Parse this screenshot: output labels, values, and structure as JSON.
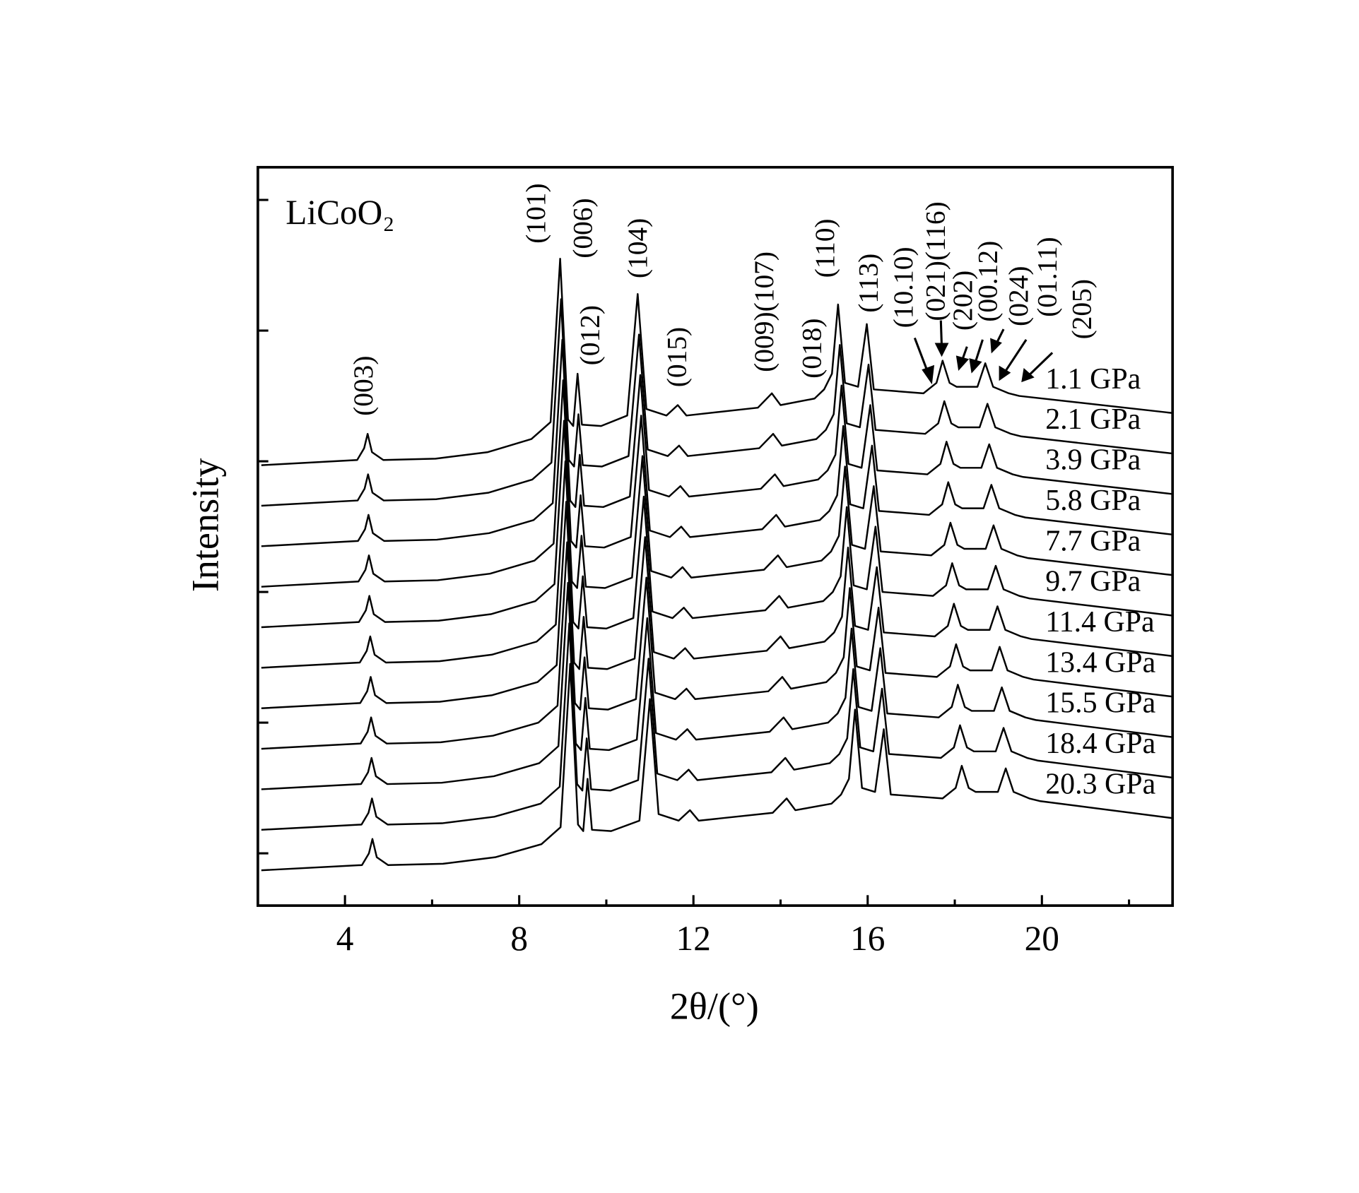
{
  "chart_data": {
    "type": "line",
    "sample_label": "LiCoO₂",
    "x_label": "2θ/(°)",
    "y_label": "Intensity",
    "annotations": [
      "(003)",
      "(101)",
      "(006)",
      "(012)",
      "(104)",
      "(015)",
      "(009)(107)",
      "(018)",
      "(110)",
      "(113)",
      "(10.10)",
      "(021)(116)",
      "(202)",
      "(00.12)",
      "(024)",
      "(01.11)",
      "(205)"
    ],
    "xlim": [
      2,
      23
    ],
    "xticks": [
      4,
      8,
      12,
      16,
      20
    ],
    "xminorticks": [
      6,
      10,
      14,
      18,
      22
    ],
    "ylim": [
      -0.4,
      5.25
    ],
    "yticks": [
      0,
      1,
      2,
      3,
      4,
      5
    ],
    "series": [
      {
        "name": "1.1 GPa",
        "color": "#000000",
        "x": [
          2.08,
          4.28,
          4.44,
          4.52,
          4.62,
          4.88,
          6.08,
          7.28,
          8.28,
          8.72,
          8.94,
          9.12,
          9.24,
          9.34,
          9.44,
          9.88,
          10.48,
          10.72,
          10.92,
          11.38,
          11.64,
          11.84,
          13.48,
          13.8,
          14.0,
          14.78,
          15.0,
          15.18,
          15.32,
          15.48,
          15.78,
          15.98,
          16.14,
          17.28,
          17.58,
          17.72,
          17.88,
          18.04,
          18.52,
          18.7,
          18.88,
          19.24,
          19.48,
          22.98
        ],
        "values": [
          2.97,
          3.01,
          3.1,
          3.21,
          3.07,
          3.01,
          3.02,
          3.07,
          3.17,
          3.3,
          4.55,
          3.32,
          3.27,
          3.67,
          3.28,
          3.27,
          3.35,
          4.28,
          3.4,
          3.35,
          3.43,
          3.35,
          3.41,
          3.52,
          3.43,
          3.48,
          3.55,
          3.67,
          4.2,
          3.6,
          3.57,
          4.05,
          3.55,
          3.52,
          3.6,
          3.77,
          3.6,
          3.57,
          3.57,
          3.75,
          3.57,
          3.52,
          3.5,
          3.37
        ]
      },
      {
        "name": "2.1 GPa",
        "color": "#000000",
        "x": [
          2.08,
          4.29,
          4.45,
          4.53,
          4.63,
          4.89,
          6.1,
          7.3,
          8.3,
          8.74,
          8.96,
          9.14,
          9.26,
          9.36,
          9.46,
          9.9,
          10.51,
          10.75,
          10.95,
          11.41,
          11.67,
          11.87,
          13.51,
          13.83,
          14.03,
          14.82,
          15.04,
          15.22,
          15.36,
          15.52,
          15.82,
          16.02,
          16.18,
          17.32,
          17.62,
          17.76,
          17.92,
          18.08,
          18.57,
          18.75,
          18.93,
          19.29,
          19.53,
          22.98
        ],
        "values": [
          2.66,
          2.7,
          2.79,
          2.9,
          2.76,
          2.7,
          2.71,
          2.76,
          2.86,
          2.99,
          4.24,
          3.01,
          2.96,
          3.36,
          2.97,
          2.96,
          3.04,
          3.97,
          3.09,
          3.04,
          3.12,
          3.04,
          3.1,
          3.21,
          3.12,
          3.17,
          3.24,
          3.36,
          3.89,
          3.29,
          3.26,
          3.74,
          3.24,
          3.21,
          3.29,
          3.46,
          3.29,
          3.26,
          3.26,
          3.44,
          3.26,
          3.21,
          3.19,
          3.06
        ]
      },
      {
        "name": "3.9 GPa",
        "color": "#000000",
        "x": [
          2.08,
          4.3,
          4.46,
          4.54,
          4.64,
          4.9,
          6.11,
          7.31,
          8.33,
          8.77,
          8.99,
          9.17,
          9.29,
          9.39,
          9.49,
          9.93,
          10.54,
          10.78,
          10.98,
          11.44,
          11.7,
          11.9,
          13.55,
          13.87,
          14.07,
          14.86,
          15.08,
          15.26,
          15.4,
          15.56,
          15.86,
          16.06,
          16.22,
          17.37,
          17.67,
          17.81,
          17.97,
          18.13,
          18.61,
          18.79,
          18.97,
          19.33,
          19.57,
          22.98
        ],
        "values": [
          2.35,
          2.39,
          2.48,
          2.59,
          2.45,
          2.39,
          2.4,
          2.45,
          2.55,
          2.68,
          3.93,
          2.7,
          2.65,
          3.05,
          2.66,
          2.65,
          2.73,
          3.66,
          2.78,
          2.73,
          2.81,
          2.73,
          2.79,
          2.9,
          2.81,
          2.86,
          2.93,
          3.05,
          3.58,
          2.98,
          2.95,
          3.43,
          2.93,
          2.9,
          2.98,
          3.15,
          2.98,
          2.95,
          2.95,
          3.13,
          2.95,
          2.9,
          2.88,
          2.75
        ]
      },
      {
        "name": "5.8 GPa",
        "color": "#000000",
        "x": [
          2.08,
          4.31,
          4.47,
          4.55,
          4.65,
          4.91,
          6.13,
          7.33,
          8.35,
          8.79,
          9.01,
          9.19,
          9.31,
          9.41,
          9.51,
          9.95,
          10.56,
          10.8,
          11.0,
          11.46,
          11.72,
          11.92,
          13.58,
          13.9,
          14.1,
          14.9,
          15.12,
          15.3,
          15.44,
          15.6,
          15.9,
          16.1,
          16.26,
          17.41,
          17.71,
          17.85,
          18.01,
          18.17,
          18.66,
          18.84,
          19.02,
          19.38,
          19.62,
          22.98
        ],
        "values": [
          2.04,
          2.08,
          2.17,
          2.28,
          2.14,
          2.08,
          2.09,
          2.14,
          2.24,
          2.37,
          3.62,
          2.39,
          2.34,
          2.74,
          2.35,
          2.34,
          2.42,
          3.35,
          2.47,
          2.42,
          2.5,
          2.42,
          2.48,
          2.59,
          2.5,
          2.55,
          2.62,
          2.74,
          3.27,
          2.67,
          2.64,
          3.12,
          2.62,
          2.59,
          2.67,
          2.84,
          2.67,
          2.64,
          2.64,
          2.82,
          2.64,
          2.59,
          2.57,
          2.44
        ]
      },
      {
        "name": "7.7 GPa",
        "color": "#000000",
        "x": [
          2.08,
          4.32,
          4.48,
          4.56,
          4.66,
          4.92,
          6.15,
          7.35,
          8.37,
          8.81,
          9.03,
          9.21,
          9.33,
          9.43,
          9.53,
          9.97,
          10.59,
          10.83,
          11.03,
          11.49,
          11.75,
          11.95,
          13.62,
          13.94,
          14.14,
          14.94,
          15.16,
          15.34,
          15.48,
          15.64,
          15.94,
          16.14,
          16.3,
          17.46,
          17.76,
          17.9,
          18.06,
          18.22,
          18.71,
          18.89,
          19.07,
          19.43,
          19.67,
          22.98
        ],
        "values": [
          1.73,
          1.77,
          1.86,
          1.97,
          1.83,
          1.77,
          1.78,
          1.83,
          1.93,
          2.06,
          3.31,
          2.08,
          2.03,
          2.43,
          2.04,
          2.03,
          2.11,
          3.04,
          2.16,
          2.11,
          2.19,
          2.11,
          2.17,
          2.28,
          2.19,
          2.24,
          2.31,
          2.43,
          2.96,
          2.36,
          2.33,
          2.81,
          2.31,
          2.28,
          2.36,
          2.53,
          2.36,
          2.33,
          2.33,
          2.51,
          2.33,
          2.28,
          2.26,
          2.13
        ]
      },
      {
        "name": "9.7 GPa",
        "color": "#000000",
        "x": [
          2.08,
          4.34,
          4.5,
          4.58,
          4.68,
          4.94,
          6.17,
          7.37,
          8.4,
          8.84,
          9.06,
          9.24,
          9.36,
          9.46,
          9.56,
          10.0,
          10.62,
          10.86,
          11.06,
          11.52,
          11.78,
          11.98,
          13.65,
          13.97,
          14.17,
          14.98,
          15.2,
          15.38,
          15.52,
          15.68,
          15.98,
          16.18,
          16.34,
          17.5,
          17.8,
          17.94,
          18.1,
          18.26,
          18.76,
          18.94,
          19.12,
          19.48,
          19.72,
          22.98
        ],
        "values": [
          1.42,
          1.46,
          1.55,
          1.66,
          1.52,
          1.46,
          1.47,
          1.52,
          1.62,
          1.75,
          3.0,
          1.77,
          1.72,
          2.12,
          1.73,
          1.72,
          1.8,
          2.73,
          1.85,
          1.8,
          1.88,
          1.8,
          1.86,
          1.97,
          1.88,
          1.93,
          2.0,
          2.12,
          2.65,
          2.05,
          2.02,
          2.5,
          2.0,
          1.97,
          2.05,
          2.22,
          2.05,
          2.02,
          2.02,
          2.2,
          2.02,
          1.97,
          1.95,
          1.82
        ]
      },
      {
        "name": "11.4 GPa",
        "color": "#000000",
        "x": [
          2.08,
          4.35,
          4.51,
          4.59,
          4.69,
          4.95,
          6.18,
          7.38,
          8.42,
          8.86,
          9.08,
          9.26,
          9.38,
          9.48,
          9.58,
          10.02,
          10.65,
          10.89,
          11.09,
          11.55,
          11.81,
          12.01,
          13.68,
          14.0,
          14.2,
          15.01,
          15.23,
          15.41,
          15.55,
          15.71,
          16.01,
          16.21,
          16.37,
          17.54,
          17.84,
          17.98,
          18.14,
          18.3,
          18.8,
          18.98,
          19.16,
          19.52,
          19.76,
          22.98
        ],
        "values": [
          1.11,
          1.15,
          1.24,
          1.35,
          1.21,
          1.15,
          1.16,
          1.21,
          1.31,
          1.44,
          2.69,
          1.46,
          1.41,
          1.81,
          1.42,
          1.41,
          1.49,
          2.42,
          1.54,
          1.49,
          1.57,
          1.49,
          1.55,
          1.66,
          1.57,
          1.62,
          1.69,
          1.81,
          2.34,
          1.74,
          1.71,
          2.19,
          1.69,
          1.66,
          1.74,
          1.91,
          1.74,
          1.71,
          1.71,
          1.89,
          1.71,
          1.66,
          1.64,
          1.51
        ]
      },
      {
        "name": "13.4 GPa",
        "color": "#000000",
        "x": [
          2.08,
          4.36,
          4.52,
          4.6,
          4.7,
          4.96,
          6.2,
          7.4,
          8.44,
          8.88,
          9.1,
          9.28,
          9.4,
          9.5,
          9.6,
          10.04,
          10.68,
          10.92,
          11.12,
          11.58,
          11.84,
          12.04,
          13.72,
          14.04,
          14.24,
          15.05,
          15.27,
          15.45,
          15.59,
          15.75,
          16.05,
          16.25,
          16.41,
          17.59,
          17.89,
          18.03,
          18.19,
          18.35,
          18.85,
          19.03,
          19.21,
          19.57,
          19.81,
          22.98
        ],
        "values": [
          0.8,
          0.84,
          0.93,
          1.04,
          0.9,
          0.84,
          0.85,
          0.9,
          1.0,
          1.13,
          2.38,
          1.15,
          1.1,
          1.5,
          1.11,
          1.1,
          1.18,
          2.11,
          1.23,
          1.18,
          1.26,
          1.18,
          1.24,
          1.35,
          1.26,
          1.31,
          1.38,
          1.5,
          2.03,
          1.43,
          1.4,
          1.88,
          1.38,
          1.35,
          1.43,
          1.6,
          1.43,
          1.4,
          1.4,
          1.58,
          1.4,
          1.35,
          1.33,
          1.2
        ]
      },
      {
        "name": "15.5 GPa",
        "color": "#000000",
        "x": [
          2.08,
          4.37,
          4.53,
          4.61,
          4.71,
          4.97,
          6.22,
          7.42,
          8.46,
          8.9,
          9.12,
          9.3,
          9.42,
          9.52,
          9.62,
          10.06,
          10.7,
          10.94,
          11.14,
          11.6,
          11.86,
          12.06,
          13.75,
          14.07,
          14.27,
          15.09,
          15.31,
          15.49,
          15.63,
          15.79,
          16.09,
          16.29,
          16.45,
          17.63,
          17.93,
          18.07,
          18.23,
          18.39,
          18.9,
          19.08,
          19.26,
          19.62,
          19.86,
          22.98
        ],
        "values": [
          0.49,
          0.53,
          0.62,
          0.73,
          0.59,
          0.53,
          0.54,
          0.59,
          0.69,
          0.82,
          2.07,
          0.84,
          0.79,
          1.19,
          0.8,
          0.79,
          0.87,
          1.8,
          0.92,
          0.87,
          0.95,
          0.87,
          0.93,
          1.04,
          0.95,
          1.0,
          1.07,
          1.19,
          1.72,
          1.12,
          1.09,
          1.57,
          1.07,
          1.04,
          1.12,
          1.29,
          1.12,
          1.09,
          1.09,
          1.27,
          1.09,
          1.04,
          1.02,
          0.89
        ]
      },
      {
        "name": "18.4 GPa",
        "color": "#000000",
        "x": [
          2.08,
          4.38,
          4.54,
          4.62,
          4.72,
          4.98,
          6.23,
          7.43,
          8.49,
          8.93,
          9.15,
          9.33,
          9.45,
          9.55,
          9.65,
          10.09,
          10.73,
          10.97,
          11.17,
          11.63,
          11.89,
          12.09,
          13.79,
          14.11,
          14.31,
          15.13,
          15.35,
          15.53,
          15.67,
          15.83,
          16.13,
          16.33,
          16.49,
          17.68,
          17.98,
          18.12,
          18.28,
          18.44,
          18.94,
          19.12,
          19.3,
          19.66,
          19.9,
          22.98
        ],
        "values": [
          0.18,
          0.22,
          0.31,
          0.42,
          0.28,
          0.22,
          0.23,
          0.28,
          0.38,
          0.51,
          1.76,
          0.53,
          0.48,
          0.88,
          0.49,
          0.48,
          0.56,
          1.49,
          0.61,
          0.56,
          0.64,
          0.56,
          0.62,
          0.73,
          0.64,
          0.69,
          0.76,
          0.88,
          1.41,
          0.81,
          0.78,
          1.26,
          0.76,
          0.73,
          0.81,
          0.98,
          0.81,
          0.78,
          0.78,
          0.96,
          0.78,
          0.73,
          0.71,
          0.58
        ]
      },
      {
        "name": "20.3 GPa",
        "color": "#000000",
        "x": [
          2.08,
          4.39,
          4.55,
          4.63,
          4.73,
          4.99,
          6.25,
          7.45,
          8.51,
          8.95,
          9.17,
          9.35,
          9.47,
          9.57,
          9.67,
          10.11,
          10.76,
          11.0,
          11.2,
          11.66,
          11.92,
          12.12,
          13.82,
          14.14,
          14.34,
          15.17,
          15.39,
          15.57,
          15.71,
          15.87,
          16.17,
          16.37,
          16.53,
          17.72,
          18.02,
          18.16,
          18.32,
          18.48,
          18.99,
          19.17,
          19.35,
          19.71,
          19.95,
          22.98
        ],
        "values": [
          -0.13,
          -0.09,
          0.0,
          0.11,
          -0.03,
          -0.09,
          -0.08,
          -0.03,
          0.07,
          0.2,
          1.45,
          0.22,
          0.17,
          0.57,
          0.18,
          0.17,
          0.25,
          1.18,
          0.3,
          0.25,
          0.33,
          0.25,
          0.31,
          0.42,
          0.33,
          0.38,
          0.45,
          0.57,
          1.1,
          0.5,
          0.47,
          0.95,
          0.45,
          0.42,
          0.5,
          0.67,
          0.5,
          0.47,
          0.47,
          0.65,
          0.47,
          0.42,
          0.4,
          0.27
        ]
      }
    ]
  }
}
